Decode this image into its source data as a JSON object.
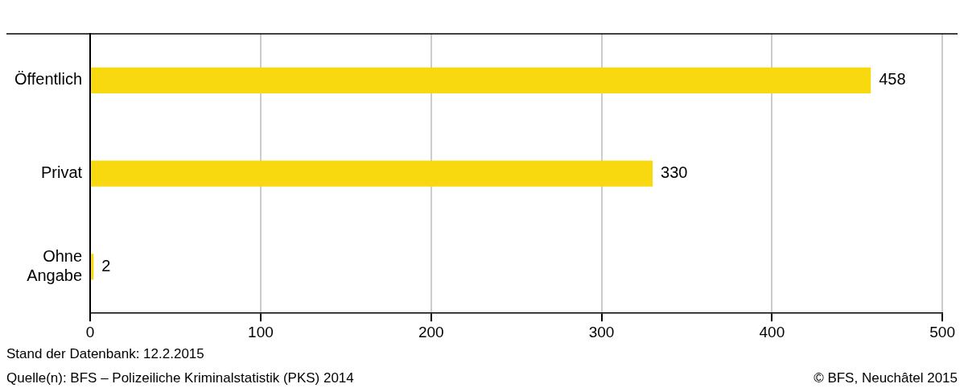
{
  "chart_data": {
    "type": "bar",
    "orientation": "horizontal",
    "categories": [
      "Öffentlich",
      "Privat",
      "Ohne Angabe"
    ],
    "values": [
      458,
      330,
      2
    ],
    "color": "#f8d90f",
    "data_labels": true,
    "xlim": [
      0,
      500
    ],
    "xticks": [
      0,
      100,
      200,
      300,
      400,
      500
    ],
    "grid": "x",
    "legend": false,
    "annotations": [
      "Stand der Datenbank: 12.2.2015",
      "Quelle(n): BFS – Polizeiliche Kriminalstatistik (PKS) 2014",
      "© BFS, Neuchâtel 2015"
    ]
  }
}
